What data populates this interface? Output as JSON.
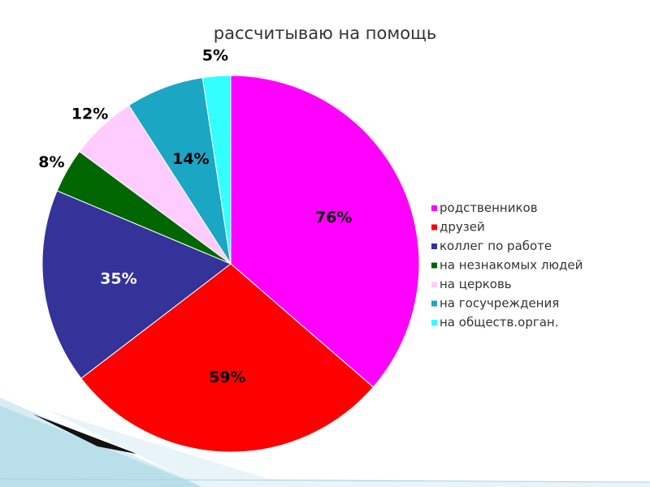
{
  "chart_data": {
    "type": "pie",
    "title": "рассчитываю на помощь",
    "categories": [
      "родственников",
      "друзей",
      "коллег по работе",
      "на незнакомых людей",
      "на церковь",
      "на госучреждения",
      "на обществ.орган."
    ],
    "values": [
      76,
      59,
      35,
      8,
      12,
      14,
      5
    ],
    "data_labels": [
      "76%",
      "59%",
      "35%",
      "8%",
      "12%",
      "14%",
      "5%"
    ],
    "colors": [
      "#ff00ff",
      "#ff0000",
      "#333399",
      "#006600",
      "#ffccff",
      "#1ba6c4",
      "#33ffff"
    ],
    "legend_position": "right",
    "start_angle": "top, clockwise"
  }
}
